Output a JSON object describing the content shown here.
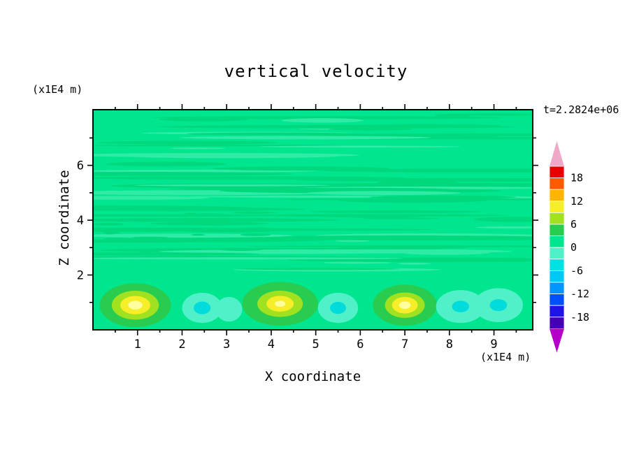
{
  "chart_data": {
    "type": "heatmap",
    "title": "vertical velocity",
    "time_annotation": "t=2.2824e+06",
    "xlabel": "X coordinate",
    "ylabel": "Z coordinate",
    "x_unit": "(x1E4 m)",
    "y_unit": "(x1E4 m)",
    "xlim": [
      0,
      9.87
    ],
    "ylim": [
      0,
      8.03
    ],
    "x_ticks": [
      1,
      2,
      3,
      4,
      5,
      6,
      7,
      8,
      9
    ],
    "y_ticks_labeled": [
      2,
      4,
      6
    ],
    "y_ticks_minor": [
      1,
      3,
      5,
      7
    ],
    "grid": false,
    "background_color": "#00e68e",
    "streak_colors": [
      "#00d87d",
      "#2feba6"
    ],
    "colorbar": {
      "levels": [
        -21,
        -18,
        -15,
        -12,
        -9,
        -6,
        -3,
        0,
        3,
        6,
        9,
        12,
        15,
        18,
        21
      ],
      "labeled_levels": [
        18,
        12,
        6,
        0,
        -6,
        -12,
        -18
      ],
      "colors_bottom_to_top": [
        "#4600b4",
        "#1e14e6",
        "#0050ff",
        "#0096ff",
        "#00c8f5",
        "#00e1e1",
        "#50f0c8",
        "#00e68e",
        "#28cd50",
        "#a0e120",
        "#f5ee28",
        "#ffb400",
        "#ff5a00",
        "#e60000"
      ],
      "over_color": "#f0a8c8",
      "under_color": "#b400c8"
    },
    "features": [
      {
        "name": "updraft",
        "cx": 0.95,
        "cz": 0.9,
        "rx": 0.8,
        "rz": 0.8,
        "peak": 12,
        "rings": [
          {
            "f": 1.0,
            "color": "#28cd50"
          },
          {
            "f": 0.66,
            "color": "#a0e120"
          },
          {
            "f": 0.42,
            "color": "#f5ee28"
          },
          {
            "f": 0.2,
            "color": "#ffff9e"
          }
        ]
      },
      {
        "name": "downdraft",
        "cx": 2.45,
        "cz": 0.8,
        "rx": 0.45,
        "rz": 0.55,
        "peak": -5,
        "rings": [
          {
            "f": 1.0,
            "color": "#50f0c8"
          },
          {
            "f": 0.42,
            "color": "#00dcdc"
          }
        ]
      },
      {
        "name": "downdraft",
        "cx": 3.05,
        "cz": 0.75,
        "rx": 0.3,
        "rz": 0.45,
        "peak": -3,
        "rings": [
          {
            "f": 1.0,
            "color": "#50f0c8"
          }
        ]
      },
      {
        "name": "updraft",
        "cx": 4.2,
        "cz": 0.95,
        "rx": 0.85,
        "rz": 0.8,
        "peak": 11,
        "rings": [
          {
            "f": 1.0,
            "color": "#28cd50"
          },
          {
            "f": 0.6,
            "color": "#a0e120"
          },
          {
            "f": 0.36,
            "color": "#f5ee28"
          },
          {
            "f": 0.14,
            "color": "#ffff9e"
          }
        ]
      },
      {
        "name": "downdraft",
        "cx": 5.5,
        "cz": 0.8,
        "rx": 0.45,
        "rz": 0.55,
        "peak": -5,
        "rings": [
          {
            "f": 1.0,
            "color": "#50f0c8"
          },
          {
            "f": 0.4,
            "color": "#00dcdc"
          }
        ]
      },
      {
        "name": "updraft",
        "cx": 7.0,
        "cz": 0.9,
        "rx": 0.72,
        "rz": 0.75,
        "peak": 12,
        "rings": [
          {
            "f": 1.0,
            "color": "#28cd50"
          },
          {
            "f": 0.62,
            "color": "#a0e120"
          },
          {
            "f": 0.4,
            "color": "#f5ee28"
          },
          {
            "f": 0.18,
            "color": "#ffff9e"
          }
        ]
      },
      {
        "name": "downdraft",
        "cx": 8.25,
        "cz": 0.85,
        "rx": 0.55,
        "rz": 0.6,
        "peak": -4,
        "rings": [
          {
            "f": 1.0,
            "color": "#50f0c8"
          },
          {
            "f": 0.35,
            "color": "#00dcdc"
          }
        ]
      },
      {
        "name": "downdraft",
        "cx": 9.1,
        "cz": 0.9,
        "rx": 0.55,
        "rz": 0.62,
        "peak": -4,
        "rings": [
          {
            "f": 1.0,
            "color": "#50f0c8"
          },
          {
            "f": 0.35,
            "color": "#00dcdc"
          }
        ]
      }
    ],
    "description": "Filled contour field: near-zero green almost everywhere with thin horizontal striations aloft; updrafts with yellow cores (~+9 to +12) near the surface at x~1, 4.2 and 7, and weak cyan downdrafts (~-3 to -6) at x~2.5, 5.5 and 8-9."
  }
}
